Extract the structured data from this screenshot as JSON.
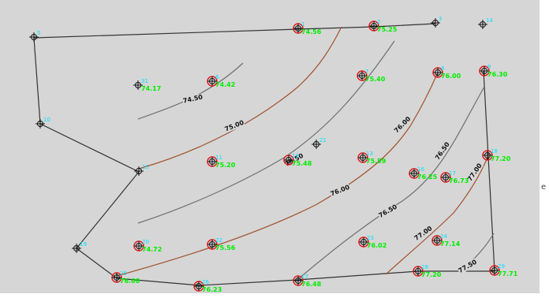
{
  "elevation_labels": [
    "74.56",
    "75.25",
    "74.42",
    "74.17",
    "75.40",
    "76.00",
    "76.30",
    "75.20",
    "75.48",
    "75.59",
    "76.25",
    "76.73",
    "77.20",
    "74.72",
    "75.56",
    "76.02",
    "77.14",
    "76.00",
    "76.23",
    "76.48",
    "77.20",
    "77.71"
  ],
  "point_ids": [
    "1",
    "2",
    "3",
    "4",
    "5",
    "6",
    "7",
    "8",
    "9",
    "10",
    "11",
    "12",
    "13",
    "14",
    "15",
    "16",
    "17",
    "18",
    "19",
    "20",
    "21",
    "22",
    "23",
    "24",
    "25",
    "26",
    "27",
    "28",
    "29",
    "30",
    "31"
  ],
  "contour_labels": [
    "74.50",
    "75.00",
    "75.50",
    "76.00",
    "76.00",
    "76.50",
    "76.50",
    "77.00",
    "77.00",
    "77.50"
  ],
  "stray_glyph": "e",
  "colors": {
    "background": "#d6d6d6",
    "boundary": "#333333",
    "contour_major": "#a0522d",
    "contour_minor": "#707070",
    "point_circle": "#e02020",
    "elevation_text": "#00ee00",
    "point_id_text": "#00e0ff"
  }
}
